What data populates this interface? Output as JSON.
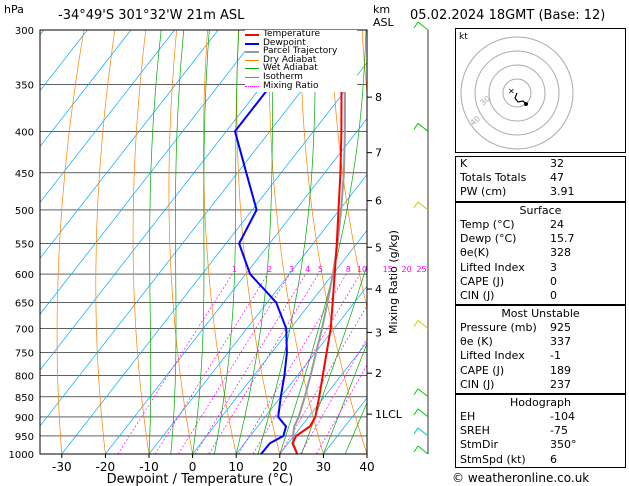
{
  "header": {
    "left_axis_unit": "hPa",
    "location": "-34°49'S  301°32'W  21m  ASL",
    "km_label": "km",
    "asl_label": "ASL",
    "datetime": "05.02.2024  18GMT  (Base: 12)"
  },
  "chart_data": {
    "type": "skew-t",
    "xlabel": "Dewpoint / Temperature (°C)",
    "ylabel_right": "Mixing Ratio (g/kg)",
    "pressure_ticks": [
      300,
      350,
      400,
      450,
      500,
      550,
      600,
      650,
      700,
      750,
      800,
      850,
      900,
      950,
      1000
    ],
    "temperature_ticks": [
      -30,
      -20,
      -10,
      0,
      10,
      20,
      30,
      40
    ],
    "temperature_tick_labels": [
      "-30",
      "-20",
      "-10",
      "0",
      "10",
      "20",
      "30",
      "40"
    ],
    "xlim": [
      -35,
      40
    ],
    "ylim": [
      1000,
      300
    ],
    "km_ticks": [
      {
        "label": "8",
        "p": 363
      },
      {
        "label": "7",
        "p": 425
      },
      {
        "label": "6",
        "p": 487
      },
      {
        "label": "5",
        "p": 556
      },
      {
        "label": "4",
        "p": 626
      },
      {
        "label": "3",
        "p": 708
      },
      {
        "label": "2",
        "p": 795
      },
      {
        "label": "1LCL",
        "p": 893
      }
    ],
    "mixing_ratio_labels": [
      "1",
      "2",
      "3",
      "4",
      "5",
      "8",
      "10",
      "15",
      "20",
      "25"
    ],
    "legend": [
      "Temperature",
      "Dewpoint",
      "Parcel Trajectory",
      "Dry Adiabat",
      "Wet Adiabat",
      "Isotherm",
      "Mixing Ratio"
    ],
    "legend_colors": [
      "#ff0000",
      "#0000ff",
      "#999999",
      "#ff8000",
      "#00aa00",
      "#00aaff",
      "#ff00ff"
    ],
    "series": [
      {
        "name": "Temperature",
        "points": [
          [
            1000,
            24
          ],
          [
            970,
            21
          ],
          [
            950,
            20.5
          ],
          [
            925,
            22
          ],
          [
            900,
            21.5
          ],
          [
            850,
            18.8
          ],
          [
            800,
            15.8
          ],
          [
            750,
            12.6
          ],
          [
            700,
            9.2
          ],
          [
            650,
            5
          ],
          [
            600,
            0.4
          ],
          [
            550,
            -4.6
          ],
          [
            500,
            -10.2
          ],
          [
            450,
            -16.4
          ],
          [
            400,
            -23.6
          ],
          [
            350,
            -32
          ],
          [
            300,
            -41.5
          ]
        ]
      },
      {
        "name": "Dewpoint",
        "points": [
          [
            1000,
            15.7
          ],
          [
            970,
            15.8
          ],
          [
            950,
            17.6
          ],
          [
            925,
            16.5
          ],
          [
            900,
            13
          ],
          [
            850,
            10
          ],
          [
            800,
            7
          ],
          [
            750,
            3.5
          ],
          [
            700,
            -1
          ],
          [
            650,
            -8
          ],
          [
            600,
            -19
          ],
          [
            550,
            -27
          ],
          [
            500,
            -29
          ],
          [
            450,
            -38
          ],
          [
            400,
            -48
          ],
          [
            350,
            -48
          ],
          [
            300,
            -53
          ]
        ]
      },
      {
        "name": "Parcel Trajectory",
        "points": [
          [
            1000,
            24
          ],
          [
            970,
            21.2
          ],
          [
            950,
            19.8
          ],
          [
            925,
            18.4
          ],
          [
            900,
            17.7
          ],
          [
            850,
            15.5
          ],
          [
            800,
            13
          ],
          [
            750,
            10.2
          ],
          [
            700,
            7.2
          ],
          [
            650,
            3.8
          ],
          [
            600,
            0
          ],
          [
            550,
            -4.4
          ],
          [
            500,
            -9.6
          ],
          [
            450,
            -15.6
          ],
          [
            400,
            -22.8
          ],
          [
            350,
            -31.2
          ],
          [
            300,
            -41.2
          ]
        ]
      }
    ],
    "wind_barbs_colors": [
      "#00cc00",
      "#cccc00",
      "#00cccc"
    ]
  },
  "hodograph": {
    "unit": "kt",
    "ring_labels": [
      "40",
      "30"
    ]
  },
  "indices": [
    {
      "key": "K",
      "value": "32"
    },
    {
      "key": "Totals Totals",
      "value": "47"
    },
    {
      "key": "PW (cm)",
      "value": "3.91"
    }
  ],
  "surface": {
    "title": "Surface",
    "rows": [
      {
        "key": "Temp (°C)",
        "value": "24"
      },
      {
        "key": "Dewp (°C)",
        "value": "15.7"
      },
      {
        "key": "θe(K)",
        "value": "328"
      },
      {
        "key": "Lifted Index",
        "value": "3"
      },
      {
        "key": "CAPE (J)",
        "value": "0"
      },
      {
        "key": "CIN (J)",
        "value": "0"
      }
    ]
  },
  "most_unstable": {
    "title": "Most Unstable",
    "rows": [
      {
        "key": "Pressure (mb)",
        "value": "925"
      },
      {
        "key": "θe (K)",
        "value": "337"
      },
      {
        "key": "Lifted Index",
        "value": "-1"
      },
      {
        "key": "CAPE (J)",
        "value": "189"
      },
      {
        "key": "CIN (J)",
        "value": "237"
      }
    ]
  },
  "hodograph_table": {
    "title": "Hodograph",
    "rows": [
      {
        "key": "EH",
        "value": "-104"
      },
      {
        "key": "SREH",
        "value": "-75"
      },
      {
        "key": "StmDir",
        "value": "350°"
      },
      {
        "key": "StmSpd (kt)",
        "value": "6"
      }
    ]
  },
  "footer": {
    "credit": "© weatheronline.co.uk"
  }
}
